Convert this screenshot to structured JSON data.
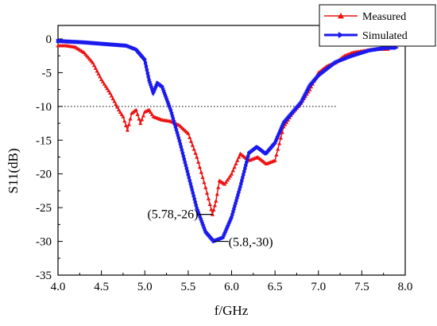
{
  "chart_data": {
    "type": "line",
    "title": "",
    "xlabel": "f/GHz",
    "ylabel": "S11(dB)",
    "xlim": [
      4.0,
      8.0
    ],
    "ylim": [
      -35,
      2
    ],
    "x_ticks": [
      "4.0",
      "4.5",
      "5.0",
      "5.5",
      "6.0",
      "6.5",
      "7.0",
      "7.5",
      "8.0"
    ],
    "y_ticks": [
      "0",
      "-5",
      "-10",
      "-15",
      "-20",
      "-25",
      "-30",
      "-35"
    ],
    "grid": false,
    "legend_position": "top-right",
    "reference_line": {
      "y": -10,
      "x_range": [
        4.0,
        7.2
      ],
      "style": "dotted"
    },
    "series": [
      {
        "name": "Measured",
        "color": "#ee1111",
        "marker": "triangle-up",
        "points": [
          [
            4.0,
            -1.0
          ],
          [
            4.1,
            -1.0
          ],
          [
            4.2,
            -1.2
          ],
          [
            4.3,
            -2.0
          ],
          [
            4.4,
            -3.5
          ],
          [
            4.5,
            -6.0
          ],
          [
            4.6,
            -8.0
          ],
          [
            4.7,
            -10.5
          ],
          [
            4.75,
            -11.5
          ],
          [
            4.8,
            -13.5
          ],
          [
            4.85,
            -11.0
          ],
          [
            4.9,
            -10.5
          ],
          [
            4.95,
            -12.5
          ],
          [
            5.0,
            -10.8
          ],
          [
            5.05,
            -10.5
          ],
          [
            5.1,
            -11.5
          ],
          [
            5.2,
            -12.0
          ],
          [
            5.3,
            -12.2
          ],
          [
            5.4,
            -12.8
          ],
          [
            5.5,
            -14.0
          ],
          [
            5.6,
            -17.5
          ],
          [
            5.7,
            -22.0
          ],
          [
            5.75,
            -24.5
          ],
          [
            5.78,
            -26.0
          ],
          [
            5.82,
            -24.0
          ],
          [
            5.86,
            -21.0
          ],
          [
            5.92,
            -21.5
          ],
          [
            6.0,
            -20.0
          ],
          [
            6.1,
            -17.0
          ],
          [
            6.2,
            -18.0
          ],
          [
            6.3,
            -17.5
          ],
          [
            6.4,
            -18.5
          ],
          [
            6.5,
            -18.0
          ],
          [
            6.6,
            -13.0
          ],
          [
            6.7,
            -11.0
          ],
          [
            6.8,
            -9.5
          ],
          [
            6.9,
            -7.5
          ],
          [
            7.0,
            -5.0
          ],
          [
            7.1,
            -4.0
          ],
          [
            7.2,
            -3.5
          ],
          [
            7.3,
            -2.5
          ],
          [
            7.4,
            -2.0
          ],
          [
            7.5,
            -1.8
          ],
          [
            7.6,
            -1.6
          ],
          [
            7.7,
            -1.5
          ],
          [
            7.8,
            -1.5
          ]
        ]
      },
      {
        "name": "Simulated",
        "color": "#1a1aee",
        "marker": "triangle-right",
        "points": [
          [
            4.0,
            -0.3
          ],
          [
            4.3,
            -0.5
          ],
          [
            4.6,
            -0.8
          ],
          [
            4.8,
            -1.0
          ],
          [
            4.9,
            -1.5
          ],
          [
            5.0,
            -3.0
          ],
          [
            5.05,
            -6.0
          ],
          [
            5.1,
            -8.0
          ],
          [
            5.15,
            -6.5
          ],
          [
            5.2,
            -7.0
          ],
          [
            5.3,
            -10.5
          ],
          [
            5.4,
            -15.0
          ],
          [
            5.5,
            -20.0
          ],
          [
            5.6,
            -25.0
          ],
          [
            5.7,
            -28.5
          ],
          [
            5.8,
            -30.0
          ],
          [
            5.9,
            -29.5
          ],
          [
            6.0,
            -26.5
          ],
          [
            6.1,
            -22.0
          ],
          [
            6.2,
            -17.0
          ],
          [
            6.3,
            -16.0
          ],
          [
            6.4,
            -17.0
          ],
          [
            6.5,
            -15.5
          ],
          [
            6.6,
            -12.5
          ],
          [
            6.7,
            -11.0
          ],
          [
            6.8,
            -9.5
          ],
          [
            6.9,
            -7.0
          ],
          [
            7.0,
            -5.5
          ],
          [
            7.1,
            -4.5
          ],
          [
            7.2,
            -3.5
          ],
          [
            7.4,
            -2.5
          ],
          [
            7.6,
            -1.7
          ],
          [
            7.8,
            -1.3
          ],
          [
            7.9,
            -1.3
          ]
        ]
      }
    ],
    "annotations": [
      {
        "text": "(5.78,-26)",
        "x": 5.78,
        "y": -26,
        "side": "left"
      },
      {
        "text": "(5.8,-30)",
        "x": 5.8,
        "y": -30,
        "side": "right"
      }
    ]
  }
}
